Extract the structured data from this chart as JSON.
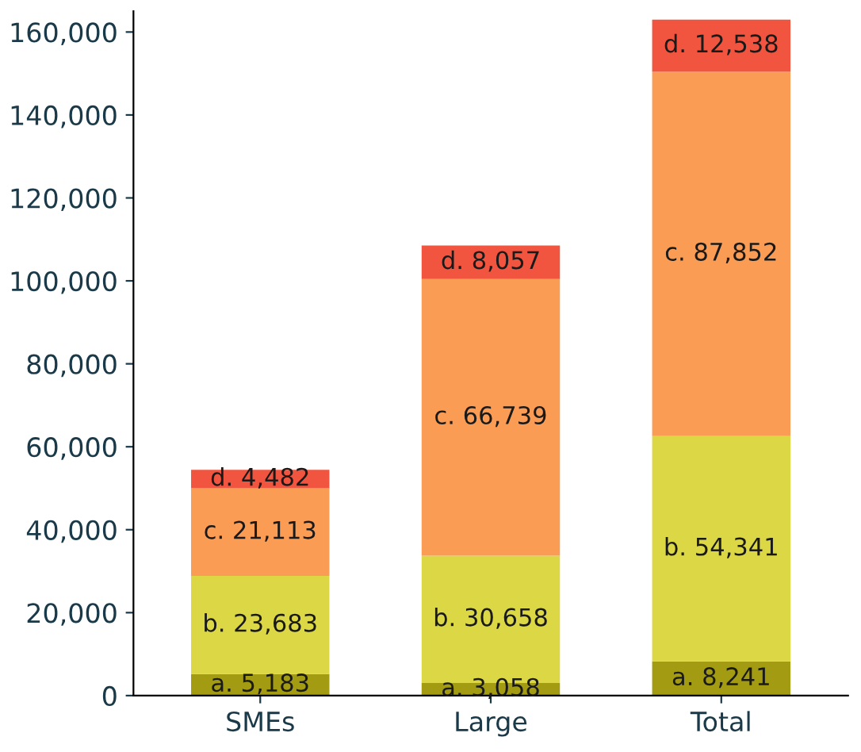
{
  "chart_data": {
    "type": "bar",
    "stacked": true,
    "categories": [
      "SMEs",
      "Large",
      "Total"
    ],
    "series": [
      {
        "color": "#a39c12",
        "values": [
          5183,
          3058,
          8241
        ],
        "value_labels": [
          "a. 5,183",
          "a. 3,058",
          "a. 8,241"
        ]
      },
      {
        "color": "#dcd845",
        "values": [
          23683,
          30658,
          54341
        ],
        "value_labels": [
          "b. 23,683",
          "b. 30,658",
          "b. 54,341"
        ]
      },
      {
        "color": "#fb9c55",
        "values": [
          21113,
          66739,
          87852
        ],
        "value_labels": [
          "c. 21,113",
          "c. 66,739",
          "c. 87,852"
        ]
      },
      {
        "color": "#f2553f",
        "values": [
          4482,
          8057,
          12538
        ],
        "value_labels": [
          "d. 4,482",
          "d. 8,057",
          "d. 12,538"
        ]
      }
    ],
    "ylim": [
      0,
      165000
    ],
    "yticks": [
      {
        "value": 0,
        "label": "0"
      },
      {
        "value": 20000,
        "label": "20,000"
      },
      {
        "value": 40000,
        "label": "40,000"
      },
      {
        "value": 60000,
        "label": "60,000"
      },
      {
        "value": 80000,
        "label": "80,000"
      },
      {
        "value": 100000,
        "label": "100,000"
      },
      {
        "value": 120000,
        "label": "120,000"
      },
      {
        "value": 140000,
        "label": "140,000"
      },
      {
        "value": 160000,
        "label": "160,000"
      }
    ],
    "grid": false,
    "legend": false
  }
}
